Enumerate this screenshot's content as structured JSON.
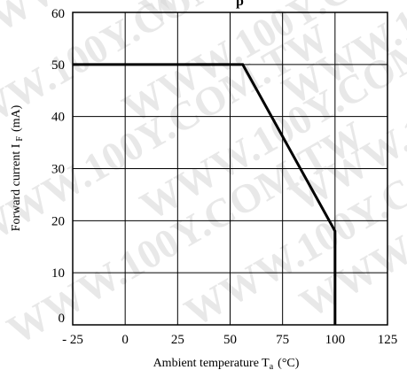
{
  "chart_data": {
    "type": "line",
    "title": "",
    "title_partial": "p",
    "xlabel": "Ambient temperature T",
    "xlabel_sub": "a",
    "xlabel_unit": "(°C)",
    "ylabel": "Forward current I",
    "ylabel_sub": "F",
    "ylabel_unit": "(mA)",
    "xlim": [
      -25,
      125
    ],
    "ylim": [
      0,
      60
    ],
    "x_ticks": [
      -25,
      0,
      25,
      50,
      75,
      100,
      125
    ],
    "x_tick_labels": [
      "- 25",
      "0",
      "25",
      "50",
      "75",
      "100",
      "125"
    ],
    "y_ticks": [
      0,
      10,
      20,
      30,
      40,
      50,
      60
    ],
    "y_tick_labels": [
      "0",
      "10",
      "20",
      "30",
      "40",
      "50",
      "60"
    ],
    "grid": true,
    "series": [
      {
        "x": [
          -25,
          56,
          100,
          100
        ],
        "y": [
          50,
          50,
          18,
          0
        ]
      }
    ],
    "watermark": "WWW.100Y.COM.TW"
  }
}
